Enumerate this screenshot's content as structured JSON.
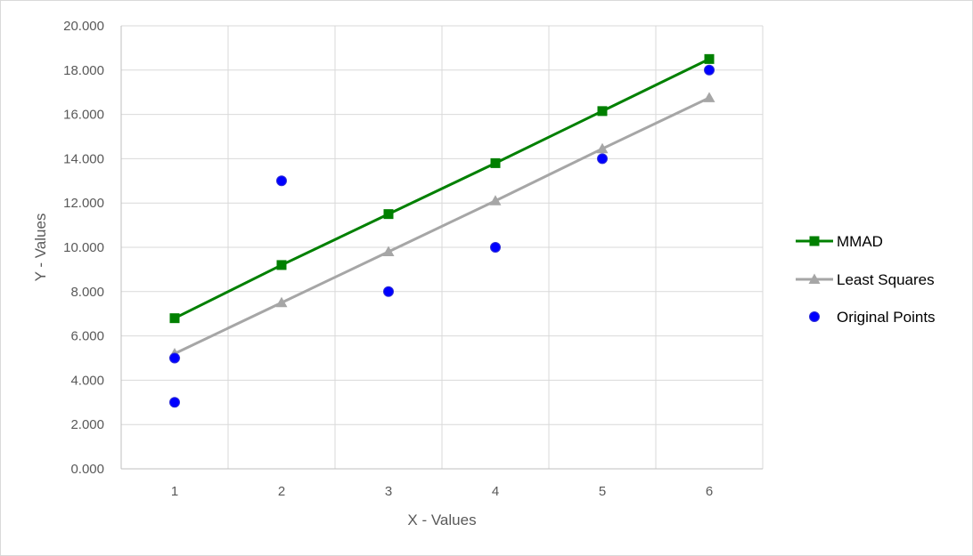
{
  "chart_data": {
    "type": "line",
    "title": "",
    "xlabel": "X - Values",
    "ylabel": "Y - Values",
    "x": [
      1,
      2,
      3,
      4,
      5,
      6
    ],
    "xlim": [
      0.5,
      6.5
    ],
    "ylim": [
      0,
      20
    ],
    "ytick_labels": [
      "0.000",
      "2.000",
      "4.000",
      "6.000",
      "8.000",
      "10.000",
      "12.000",
      "14.000",
      "16.000",
      "18.000",
      "20.000"
    ],
    "xtick_labels": [
      "1",
      "2",
      "3",
      "4",
      "5",
      "6"
    ],
    "grid": true,
    "legend": "right",
    "series": [
      {
        "name": "MMAD",
        "style": "line",
        "marker": "square",
        "color": "#008000",
        "points": [
          [
            1,
            6.8
          ],
          [
            2,
            9.2
          ],
          [
            3,
            11.5
          ],
          [
            4,
            13.8
          ],
          [
            5,
            16.15
          ],
          [
            6,
            18.5
          ]
        ]
      },
      {
        "name": "Least Squares",
        "style": "line",
        "marker": "triangle",
        "color": "#a6a6a6",
        "points": [
          [
            1,
            5.2
          ],
          [
            2,
            7.5
          ],
          [
            3,
            9.8
          ],
          [
            4,
            12.1
          ],
          [
            5,
            14.45
          ],
          [
            6,
            16.75
          ]
        ]
      },
      {
        "name": "Original Points",
        "style": "scatter",
        "marker": "circle",
        "color": "#0000ff",
        "points": [
          [
            1,
            3
          ],
          [
            1,
            5
          ],
          [
            2,
            13
          ],
          [
            3,
            8
          ],
          [
            4,
            10
          ],
          [
            5,
            14
          ],
          [
            6,
            18
          ]
        ]
      }
    ]
  }
}
